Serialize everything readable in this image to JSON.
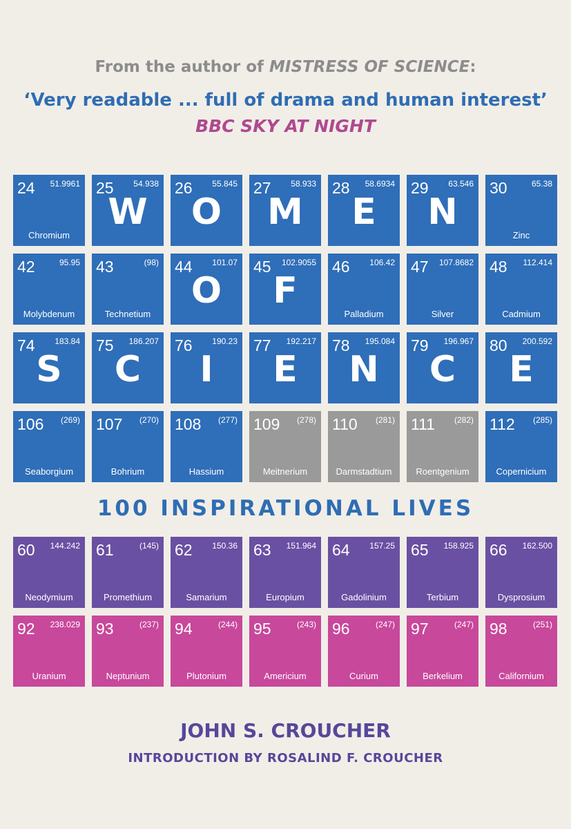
{
  "header": {
    "from_prefix": "From the author of ",
    "from_title": "MISTRESS OF SCIENCE",
    "from_suffix": ":",
    "quote": "‘Very readable ... full of drama and human interest’",
    "quote_source": "BBC SKY AT NIGHT"
  },
  "subtitle": "100 INSPIRATIONAL LIVES",
  "author": "JOHN S. CROUCHER",
  "introduction": "INTRODUCTION BY ROSALIND F. CROUCHER",
  "colors": {
    "blue": "#2f6eb8",
    "gray": "#9a9a9a",
    "purple": "#6a50a2",
    "pink": "#c8489b",
    "background": "#f1eee8"
  },
  "rows": [
    [
      {
        "num": "24",
        "mass": "51.9961",
        "name": "Chromium",
        "color": "blue"
      },
      {
        "num": "25",
        "mass": "54.938",
        "letter": "W",
        "color": "blue"
      },
      {
        "num": "26",
        "mass": "55.845",
        "letter": "O",
        "color": "blue"
      },
      {
        "num": "27",
        "mass": "58.933",
        "letter": "M",
        "color": "blue"
      },
      {
        "num": "28",
        "mass": "58.6934",
        "letter": "E",
        "color": "blue"
      },
      {
        "num": "29",
        "mass": "63.546",
        "letter": "N",
        "color": "blue"
      },
      {
        "num": "30",
        "mass": "65.38",
        "name": "Zinc",
        "color": "blue"
      }
    ],
    [
      {
        "num": "42",
        "mass": "95.95",
        "name": "Molybdenum",
        "color": "blue"
      },
      {
        "num": "43",
        "mass": "(98)",
        "name": "Technetium",
        "color": "blue"
      },
      {
        "num": "44",
        "mass": "101.07",
        "letter": "O",
        "color": "blue"
      },
      {
        "num": "45",
        "mass": "102.9055",
        "letter": "F",
        "color": "blue"
      },
      {
        "num": "46",
        "mass": "106.42",
        "name": "Palladium",
        "color": "blue"
      },
      {
        "num": "47",
        "mass": "107.8682",
        "name": "Silver",
        "color": "blue"
      },
      {
        "num": "48",
        "mass": "112.414",
        "name": "Cadmium",
        "color": "blue"
      }
    ],
    [
      {
        "num": "74",
        "mass": "183.84",
        "letter": "S",
        "color": "blue"
      },
      {
        "num": "75",
        "mass": "186.207",
        "letter": "C",
        "color": "blue"
      },
      {
        "num": "76",
        "mass": "190.23",
        "letter": "I",
        "color": "blue"
      },
      {
        "num": "77",
        "mass": "192.217",
        "letter": "E",
        "color": "blue"
      },
      {
        "num": "78",
        "mass": "195.084",
        "letter": "N",
        "color": "blue"
      },
      {
        "num": "79",
        "mass": "196.967",
        "letter": "C",
        "color": "blue"
      },
      {
        "num": "80",
        "mass": "200.592",
        "letter": "E",
        "color": "blue"
      }
    ],
    [
      {
        "num": "106",
        "mass": "(269)",
        "name": "Seaborgium",
        "color": "blue"
      },
      {
        "num": "107",
        "mass": "(270)",
        "name": "Bohrium",
        "color": "blue"
      },
      {
        "num": "108",
        "mass": "(277)",
        "name": "Hassium",
        "color": "blue"
      },
      {
        "num": "109",
        "mass": "(278)",
        "name": "Meitnerium",
        "color": "gray"
      },
      {
        "num": "110",
        "mass": "(281)",
        "name": "Darmstadtium",
        "color": "gray"
      },
      {
        "num": "111",
        "mass": "(282)",
        "name": "Roentgenium",
        "color": "gray"
      },
      {
        "num": "112",
        "mass": "(285)",
        "name": "Copernicium",
        "color": "blue"
      }
    ],
    [
      {
        "num": "60",
        "mass": "144.242",
        "name": "Neodymium",
        "color": "purple"
      },
      {
        "num": "61",
        "mass": "(145)",
        "name": "Promethium",
        "color": "purple"
      },
      {
        "num": "62",
        "mass": "150.36",
        "name": "Samarium",
        "color": "purple"
      },
      {
        "num": "63",
        "mass": "151.964",
        "name": "Europium",
        "color": "purple"
      },
      {
        "num": "64",
        "mass": "157.25",
        "name": "Gadolinium",
        "color": "purple"
      },
      {
        "num": "65",
        "mass": "158.925",
        "name": "Terbium",
        "color": "purple"
      },
      {
        "num": "66",
        "mass": "162.500",
        "name": "Dysprosium",
        "color": "purple"
      }
    ],
    [
      {
        "num": "92",
        "mass": "238.029",
        "name": "Uranium",
        "color": "pink"
      },
      {
        "num": "93",
        "mass": "(237)",
        "name": "Neptunium",
        "color": "pink"
      },
      {
        "num": "94",
        "mass": "(244)",
        "name": "Plutonium",
        "color": "pink"
      },
      {
        "num": "95",
        "mass": "(243)",
        "name": "Americium",
        "color": "pink"
      },
      {
        "num": "96",
        "mass": "(247)",
        "name": "Curium",
        "color": "pink"
      },
      {
        "num": "97",
        "mass": "(247)",
        "name": "Berkelium",
        "color": "pink"
      },
      {
        "num": "98",
        "mass": "(251)",
        "name": "Californium",
        "color": "pink"
      }
    ]
  ]
}
